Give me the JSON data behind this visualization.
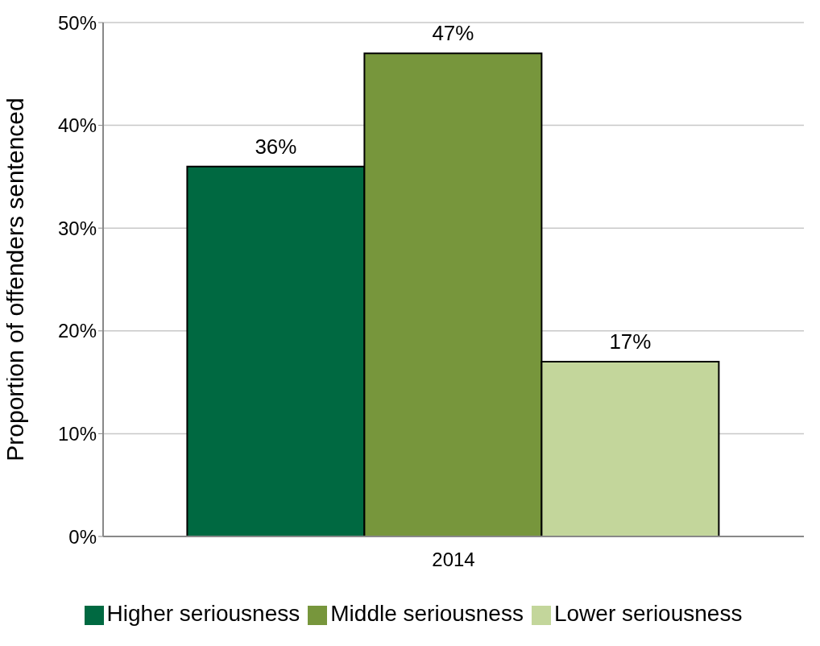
{
  "chart_data": {
    "type": "bar",
    "ylabel": "Proportion of offenders sentenced",
    "categories": [
      "2014"
    ],
    "series": [
      {
        "name": "Higher seriousness",
        "color": "#006941",
        "values": [
          36
        ],
        "value_labels": [
          "36%"
        ]
      },
      {
        "name": "Middle seriousness",
        "color": "#77963c",
        "values": [
          47
        ],
        "value_labels": [
          "47%"
        ]
      },
      {
        "name": "Lower seriousness",
        "color": "#c3d69b",
        "values": [
          17
        ],
        "value_labels": [
          "17%"
        ]
      }
    ],
    "ylim": [
      0,
      50
    ],
    "yticks": [
      {
        "value": 0,
        "label": "0%"
      },
      {
        "value": 10,
        "label": "10%"
      },
      {
        "value": 20,
        "label": "20%"
      },
      {
        "value": 30,
        "label": "30%"
      },
      {
        "value": 40,
        "label": "40%"
      },
      {
        "value": 50,
        "label": "50%"
      }
    ],
    "grid": "y",
    "legend": "bottom"
  }
}
